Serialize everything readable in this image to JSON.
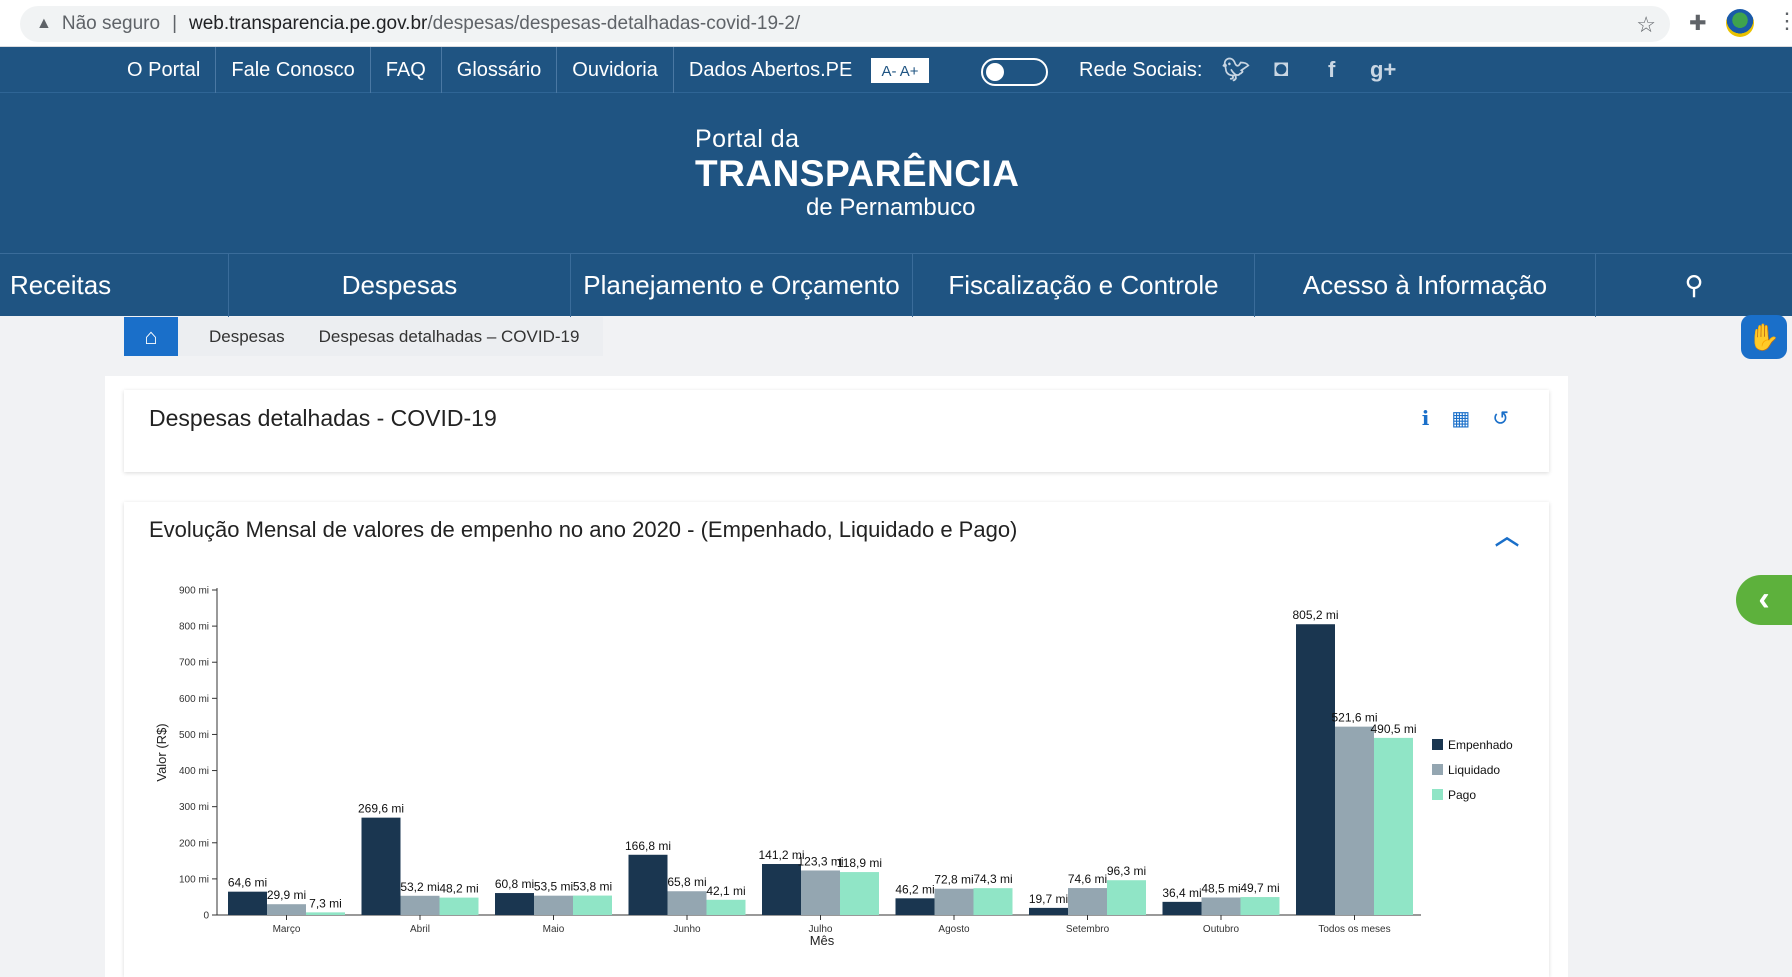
{
  "browser": {
    "security": "Não seguro",
    "url_host": "web.transparencia.pe.gov.br",
    "url_path": "/despesas/despesas-detalhadas-covid-19-2/"
  },
  "topbar": {
    "links": [
      "O Portal",
      "Fale Conosco",
      "FAQ",
      "Glossário",
      "Ouvidoria",
      "Dados Abertos.PE"
    ],
    "font_size": "A- A+",
    "social_label": "Rede Sociais:"
  },
  "logo": {
    "line1": "Portal da",
    "line2": "TRANSPARÊNCIA",
    "line3": "de Pernambuco"
  },
  "mainnav": [
    "Receitas",
    "Despesas",
    "Planejamento e Orçamento",
    "Fiscalização e Controle",
    "Acesso à Informação"
  ],
  "breadcrumb": [
    "Despesas",
    "Despesas detalhadas – COVID-19"
  ],
  "card1": {
    "title": "Despesas detalhadas - COVID-19"
  },
  "card2": {
    "title": "Evolução Mensal de valores de empenho no ano 2020 - (Empenhado, Liquidado e Pago)"
  },
  "colors": {
    "empenhado": "#1a3650",
    "liquidado": "#94a6b1",
    "pago": "#90e5c6",
    "brand": "#1f5482",
    "accent": "#1a6fc9"
  },
  "chart_data": {
    "type": "bar",
    "xlabel": "Mês",
    "ylabel": "Valor (R$)",
    "ylim": [
      0,
      900
    ],
    "yticks": [
      "0",
      "100 mi",
      "200 mi",
      "300 mi",
      "400 mi",
      "500 mi",
      "600 mi",
      "700 mi",
      "800 mi",
      "900 mi"
    ],
    "categories": [
      "Março",
      "Abril",
      "Maio",
      "Junho",
      "Julho",
      "Agosto",
      "Setembro",
      "Outubro",
      "Todos os meses"
    ],
    "series": [
      {
        "name": "Empenhado",
        "values": [
          64.6,
          269.6,
          60.8,
          166.8,
          141.2,
          46.2,
          19.7,
          36.4,
          805.2
        ],
        "labels": [
          "64,6 mi",
          "269,6 mi",
          "60,8 mi",
          "166,8 mi",
          "141,2 mi",
          "46,2 mi",
          "19,7 mi",
          "36,4 mi",
          "805,2 mi"
        ]
      },
      {
        "name": "Liquidado",
        "values": [
          29.9,
          53.2,
          53.5,
          65.8,
          123.3,
          72.8,
          74.6,
          48.5,
          521.6
        ],
        "labels": [
          "29,9 mi",
          "53,2 mi",
          "53,5 mi",
          "65,8 mi",
          "123,3 mi",
          "72,8 mi",
          "74,6 mi",
          "48,5 mi",
          "521,6 mi"
        ]
      },
      {
        "name": "Pago",
        "values": [
          7.3,
          48.2,
          53.8,
          42.1,
          118.9,
          74.3,
          96.3,
          49.7,
          490.5
        ],
        "labels": [
          "7,3 mi",
          "48,2 mi",
          "53,8 mi",
          "42,1 mi",
          "118,9 mi",
          "74,3 mi",
          "96,3 mi",
          "49,7 mi",
          "490,5 mi"
        ]
      }
    ],
    "legend": "right",
    "grid": false
  }
}
